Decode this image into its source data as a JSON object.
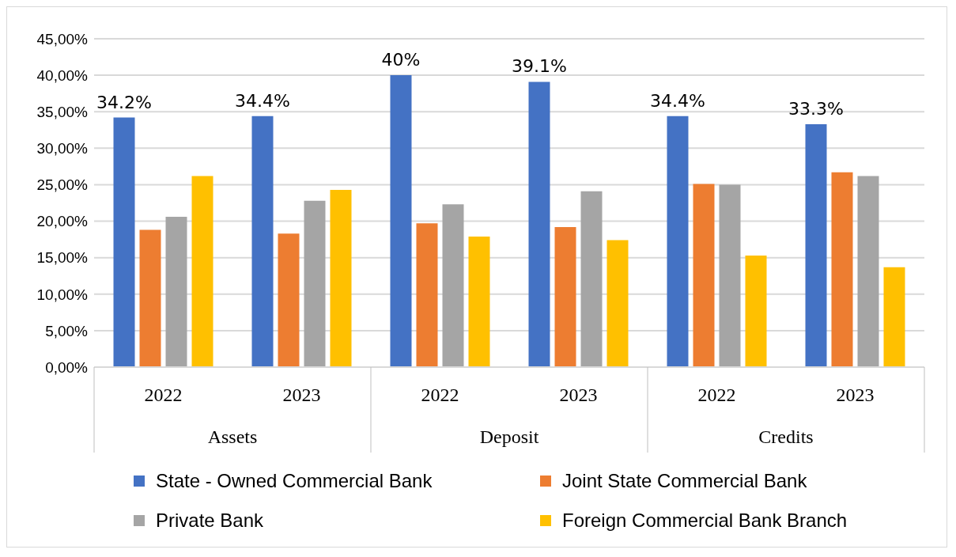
{
  "chart_data": {
    "type": "bar",
    "categories": [
      "2022",
      "2023",
      "2022",
      "2023",
      "2022",
      "2023"
    ],
    "annotations": [
      "Assets",
      "Deposit",
      "Credits"
    ],
    "series": [
      {
        "name": "State - Owned Commercial Bank",
        "color": "#4472c4",
        "values": [
          34.2,
          34.4,
          40,
          39.1,
          34.4,
          33.3
        ],
        "value_labels": [
          "34.2%",
          "34.4%",
          "40%",
          "39.1%",
          "34.4%",
          "33.3%"
        ]
      },
      {
        "name": "Joint State Commercial Bank",
        "color": "#ed7d31",
        "values": [
          18.8,
          18.3,
          19.7,
          19.2,
          25.1,
          26.7
        ]
      },
      {
        "name": "Private Bank",
        "color": "#a5a5a5",
        "values": [
          20.6,
          22.8,
          22.3,
          24.1,
          25.0,
          26.2
        ]
      },
      {
        "name": "Foreign Commercial Bank Branch",
        "color": "#ffc000",
        "values": [
          26.2,
          24.3,
          17.9,
          17.4,
          15.3,
          13.7
        ]
      }
    ],
    "ylim": [
      0,
      45
    ],
    "yticks": [
      {
        "value": 0,
        "label": "0,00%"
      },
      {
        "value": 5,
        "label": "5,00%"
      },
      {
        "value": 10,
        "label": "10,00%"
      },
      {
        "value": 15,
        "label": "15,00%"
      },
      {
        "value": 20,
        "label": "20,00%"
      },
      {
        "value": 25,
        "label": "25,00%"
      },
      {
        "value": 30,
        "label": "30,00%"
      },
      {
        "value": 35,
        "label": "35,00%"
      },
      {
        "value": 40,
        "label": "40,00%"
      },
      {
        "value": 45,
        "label": "45,00%"
      }
    ],
    "grid": "y",
    "legend": "bottom"
  }
}
